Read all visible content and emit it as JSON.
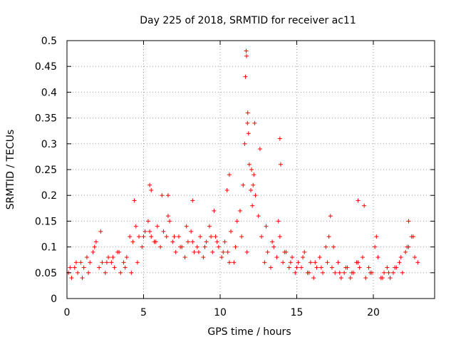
{
  "chart_data": {
    "type": "scatter",
    "title": "Day 225 of 2018, SRMTID for receiver ac11",
    "xlabel": "GPS time / hours",
    "ylabel": "SRMTID / TECUs",
    "xlim": [
      0,
      24
    ],
    "ylim": [
      0,
      0.5
    ],
    "x_ticks": [
      0,
      5,
      10,
      15,
      20
    ],
    "y_ticks": [
      0,
      0.05,
      0.1,
      0.15,
      0.2,
      0.25,
      0.3,
      0.35,
      0.4,
      0.45,
      0.5
    ],
    "x_tick_labels": [
      "0",
      "5",
      "10",
      "15",
      "20"
    ],
    "y_tick_labels": [
      "0",
      "0.05",
      "0.1",
      "0.15",
      "0.2",
      "0.25",
      "0.3",
      "0.35",
      "0.4",
      "0.45",
      "0.5"
    ],
    "grid": true,
    "marker": "+",
    "color": "#ff0000",
    "series": [
      {
        "name": "SRMTID",
        "x": [
          0.1,
          0.3,
          0.5,
          0.7,
          0.9,
          1.1,
          1.3,
          1.5,
          1.7,
          1.9,
          2.1,
          2.3,
          2.5,
          2.7,
          2.9,
          3.1,
          3.3,
          3.5,
          3.7,
          3.9,
          4.1,
          4.3,
          4.5,
          4.7,
          4.9,
          5.1,
          5.3,
          5.5,
          5.7,
          5.9,
          6.1,
          6.3,
          6.5,
          6.7,
          6.9,
          7.1,
          7.3,
          7.5,
          7.7,
          7.9,
          8.1,
          8.3,
          8.5,
          8.7,
          8.9,
          9.1,
          9.3,
          9.5,
          9.7,
          9.9,
          10.1,
          10.3,
          10.5,
          10.7,
          10.9,
          11.1,
          11.3,
          11.5,
          11.6,
          11.7,
          11.8,
          11.9,
          12.0,
          12.1,
          12.2,
          12.3,
          12.5,
          12.7,
          12.9,
          13.1,
          13.3,
          13.5,
          13.7,
          13.9,
          14.1,
          14.3,
          14.5,
          14.7,
          14.9,
          15.1,
          15.3,
          15.5,
          15.7,
          15.9,
          16.1,
          16.3,
          16.5,
          16.7,
          16.9,
          17.1,
          17.3,
          17.5,
          17.7,
          17.9,
          18.1,
          18.3,
          18.5,
          18.7,
          18.9,
          19.1,
          19.3,
          19.5,
          19.7,
          19.9,
          20.1,
          20.3,
          20.5,
          20.7,
          20.9,
          21.1,
          21.3,
          21.5,
          21.7,
          21.9,
          22.1,
          22.3,
          22.5,
          22.7,
          22.9,
          0.2,
          0.6,
          1.0,
          1.4,
          1.8,
          2.2,
          2.6,
          3.0,
          3.4,
          3.8,
          4.2,
          4.6,
          5.0,
          5.4,
          5.8,
          6.2,
          6.6,
          7.0,
          7.4,
          7.8,
          8.2,
          8.6,
          9.0,
          9.4,
          9.8,
          10.2,
          10.6,
          11.0,
          11.4,
          11.75,
          12.15,
          12.6,
          13.0,
          13.4,
          13.8,
          14.2,
          14.6,
          15.0,
          15.4,
          15.8,
          16.2,
          16.6,
          17.0,
          17.4,
          17.8,
          18.2,
          18.6,
          19.0,
          19.4,
          19.8,
          20.2,
          20.6,
          21.0,
          21.4,
          21.8,
          22.2,
          22.6,
          11.65,
          11.72,
          11.78,
          11.85,
          12.05,
          12.25,
          13.9,
          13.95,
          10.6,
          10.45,
          5.4,
          5.5,
          4.4,
          6.6,
          8.2,
          9.6,
          17.2,
          19.0,
          22.3
        ],
        "y": [
          0.05,
          0.04,
          0.06,
          0.05,
          0.07,
          0.06,
          0.08,
          0.07,
          0.09,
          0.11,
          0.06,
          0.07,
          0.05,
          0.08,
          0.07,
          0.06,
          0.09,
          0.05,
          0.07,
          0.08,
          0.12,
          0.11,
          0.14,
          0.12,
          0.1,
          0.13,
          0.15,
          0.12,
          0.11,
          0.14,
          0.1,
          0.13,
          0.12,
          0.15,
          0.11,
          0.09,
          0.12,
          0.1,
          0.08,
          0.11,
          0.13,
          0.09,
          0.1,
          0.12,
          0.08,
          0.11,
          0.14,
          0.09,
          0.12,
          0.1,
          0.08,
          0.11,
          0.09,
          0.13,
          0.07,
          0.15,
          0.17,
          0.22,
          0.3,
          0.48,
          0.36,
          0.26,
          0.21,
          0.18,
          0.24,
          0.2,
          0.16,
          0.12,
          0.07,
          0.09,
          0.06,
          0.1,
          0.08,
          0.12,
          0.07,
          0.09,
          0.06,
          0.08,
          0.05,
          0.07,
          0.06,
          0.09,
          0.05,
          0.07,
          0.04,
          0.06,
          0.08,
          0.05,
          0.1,
          0.12,
          0.06,
          0.05,
          0.07,
          0.04,
          0.05,
          0.06,
          0.04,
          0.05,
          0.07,
          0.06,
          0.08,
          0.04,
          0.06,
          0.05,
          0.1,
          0.08,
          0.04,
          0.05,
          0.06,
          0.04,
          0.05,
          0.06,
          0.07,
          0.05,
          0.09,
          0.1,
          0.12,
          0.08,
          0.07,
          0.06,
          0.07,
          0.04,
          0.05,
          0.1,
          0.13,
          0.07,
          0.08,
          0.09,
          0.06,
          0.05,
          0.07,
          0.12,
          0.13,
          0.11,
          0.2,
          0.16,
          0.12,
          0.1,
          0.14,
          0.11,
          0.09,
          0.1,
          0.12,
          0.11,
          0.09,
          0.07,
          0.1,
          0.12,
          0.09,
          0.22,
          0.29,
          0.14,
          0.11,
          0.15,
          0.09,
          0.07,
          0.06,
          0.08,
          0.05,
          0.07,
          0.06,
          0.07,
          0.1,
          0.05,
          0.06,
          0.05,
          0.07,
          0.18,
          0.05,
          0.12,
          0.04,
          0.05,
          0.06,
          0.08,
          0.1,
          0.12,
          0.43,
          0.47,
          0.34,
          0.32,
          0.25,
          0.34,
          0.31,
          0.26,
          0.24,
          0.21,
          0.22,
          0.21,
          0.19,
          0.2,
          0.19,
          0.17,
          0.16,
          0.19,
          0.15
        ]
      }
    ]
  }
}
